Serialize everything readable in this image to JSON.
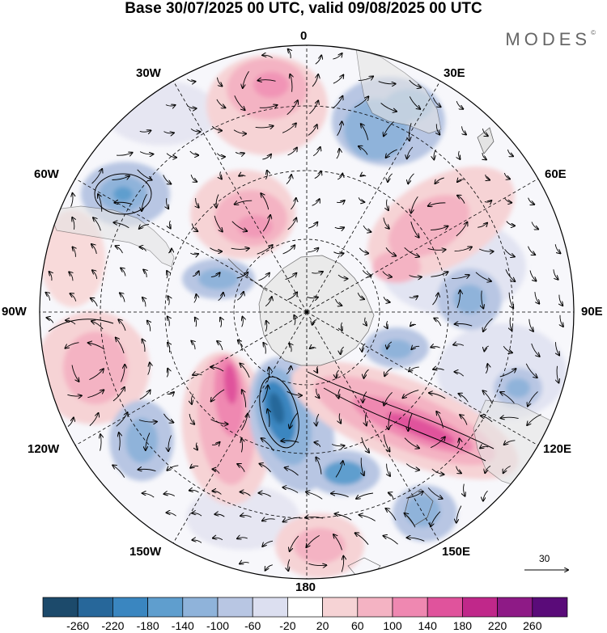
{
  "title": "Base 30/07/2025 00 UTC, valid 09/08/2025 00 UTC",
  "brand": "MODES",
  "brand_mark": "©",
  "longitude_labels": {
    "lon_0": "0",
    "lon_30e": "30E",
    "lon_60e": "60E",
    "lon_90e": "90E",
    "lon_120e": "120E",
    "lon_150e": "150E",
    "lon_180": "180",
    "lon_150w": "150W",
    "lon_120w": "120W",
    "lon_90w": "90W",
    "lon_60w": "60W",
    "lon_30w": "30W"
  },
  "reference_vector": {
    "label": "30"
  },
  "colorbar": {
    "ticks": [
      "-260",
      "-220",
      "-180",
      "-140",
      "-100",
      "-60",
      "-20",
      "20",
      "60",
      "100",
      "140",
      "180",
      "220",
      "260"
    ],
    "colors": [
      "#1c4a6b",
      "#27679a",
      "#3a86c0",
      "#5f9ece",
      "#8fb3da",
      "#b8c6e3",
      "#dcdff0",
      "#ffffff",
      "#f6d3d5",
      "#f4b3c3",
      "#ef88b1",
      "#e0539c",
      "#c0288a",
      "#8e1a86",
      "#5a0b79"
    ]
  },
  "colors": {
    "background_land": "#e4e4e4",
    "coast": "#555555",
    "grid": "#000000"
  }
}
